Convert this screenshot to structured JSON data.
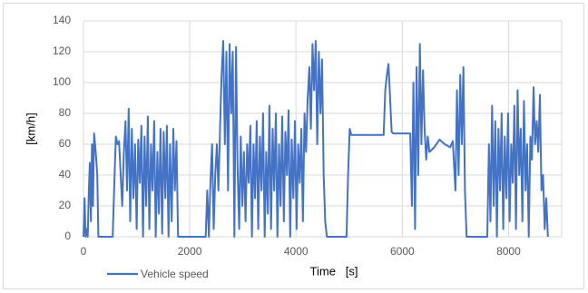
{
  "chart_data": {
    "type": "line",
    "x_label": "Time   [s]",
    "y_label": "[km/h]",
    "xlim": [
      0,
      9000
    ],
    "xticks": [
      0,
      2000,
      4000,
      6000,
      8000
    ],
    "ylim": [
      0,
      140
    ],
    "yticks": [
      0,
      20,
      40,
      60,
      80,
      100,
      120,
      140
    ],
    "grid": true,
    "legend": "bottom-left",
    "series": [
      {
        "name": "Vehicle speed",
        "color": "#4472c4",
        "x": [
          0,
          20,
          40,
          60,
          80,
          100,
          120,
          140,
          160,
          180,
          200,
          230,
          260,
          280,
          550,
          580,
          610,
          640,
          670,
          700,
          730,
          760,
          790,
          820,
          850,
          880,
          910,
          940,
          970,
          1000,
          1030,
          1060,
          1090,
          1120,
          1150,
          1180,
          1210,
          1240,
          1270,
          1300,
          1330,
          1360,
          1390,
          1420,
          1450,
          1480,
          1510,
          1540,
          1570,
          1600,
          1630,
          1660,
          1690,
          1720,
          1750,
          1780,
          2300,
          2330,
          2360,
          2390,
          2420,
          2450,
          2480,
          2510,
          2540,
          2570,
          2600,
          2630,
          2660,
          2690,
          2720,
          2750,
          2780,
          2810,
          2840,
          2870,
          2900,
          2930,
          2960,
          2990,
          3020,
          3050,
          3080,
          3110,
          3140,
          3170,
          3200,
          3230,
          3260,
          3290,
          3320,
          3350,
          3380,
          3410,
          3440,
          3470,
          3500,
          3530,
          3560,
          3590,
          3620,
          3650,
          3680,
          3710,
          3740,
          3770,
          3800,
          3830,
          3860,
          3890,
          3920,
          3950,
          3980,
          4010,
          4040,
          4070,
          4100,
          4130,
          4160,
          4190,
          4220,
          4250,
          4280,
          4310,
          4340,
          4370,
          4400,
          4430,
          4460,
          4490,
          4520,
          4550,
          4580,
          4950,
          4980,
          5010,
          5040,
          5650,
          5680,
          5710,
          5740,
          5770,
          5800,
          5830,
          5860,
          6150,
          6180,
          6210,
          6240,
          6270,
          6300,
          6330,
          6360,
          6390,
          6420,
          6450,
          6480,
          6510,
          6600,
          6700,
          6800,
          6900,
          6950,
          7000,
          7030,
          7060,
          7090,
          7120,
          7150,
          7180,
          7210,
          7600,
          7630,
          7660,
          7690,
          7720,
          7750,
          7780,
          7810,
          7840,
          7870,
          7900,
          7930,
          7960,
          7990,
          8020,
          8050,
          8080,
          8110,
          8140,
          8170,
          8200,
          8230,
          8260,
          8290,
          8320,
          8350,
          8380,
          8410,
          8440,
          8470,
          8500,
          8530,
          8560,
          8590,
          8620,
          8650,
          8680,
          8710,
          8740
        ],
        "values": [
          0,
          25,
          0,
          5,
          0,
          30,
          48,
          10,
          60,
          20,
          67,
          55,
          40,
          0,
          0,
          35,
          65,
          60,
          62,
          40,
          20,
          55,
          75,
          30,
          83,
          10,
          70,
          25,
          60,
          5,
          63,
          35,
          72,
          0,
          65,
          20,
          78,
          5,
          60,
          30,
          75,
          0,
          55,
          15,
          70,
          2,
          68,
          25,
          72,
          0,
          60,
          10,
          70,
          30,
          62,
          0,
          0,
          30,
          0,
          35,
          60,
          5,
          40,
          60,
          30,
          70,
          105,
          127,
          60,
          120,
          30,
          125,
          80,
          120,
          0,
          123,
          45,
          5,
          65,
          20,
          55,
          10,
          60,
          35,
          72,
          0,
          60,
          25,
          75,
          5,
          65,
          30,
          80,
          0,
          55,
          15,
          85,
          5,
          70,
          30,
          80,
          0,
          60,
          20,
          78,
          10,
          68,
          40,
          82,
          0,
          63,
          25,
          75,
          5,
          60,
          35,
          70,
          10,
          80,
          55,
          90,
          110,
          70,
          125,
          95,
          127,
          60,
          120,
          80,
          115,
          40,
          10,
          0,
          0,
          40,
          70,
          66,
          66,
          95,
          105,
          112,
          90,
          68,
          67,
          67,
          67,
          20,
          100,
          5,
          110,
          40,
          125,
          60,
          108,
          70,
          50,
          65,
          55,
          58,
          63,
          60,
          58,
          62,
          30,
          95,
          40,
          105,
          60,
          110,
          30,
          0,
          0,
          60,
          10,
          85,
          20,
          75,
          0,
          70,
          30,
          80,
          5,
          65,
          25,
          80,
          10,
          60,
          35,
          85,
          5,
          95,
          40,
          70,
          10,
          88,
          30,
          60,
          0,
          65,
          50,
          97,
          60,
          75,
          55,
          92,
          30,
          40,
          5,
          25,
          0
        ]
      }
    ]
  }
}
